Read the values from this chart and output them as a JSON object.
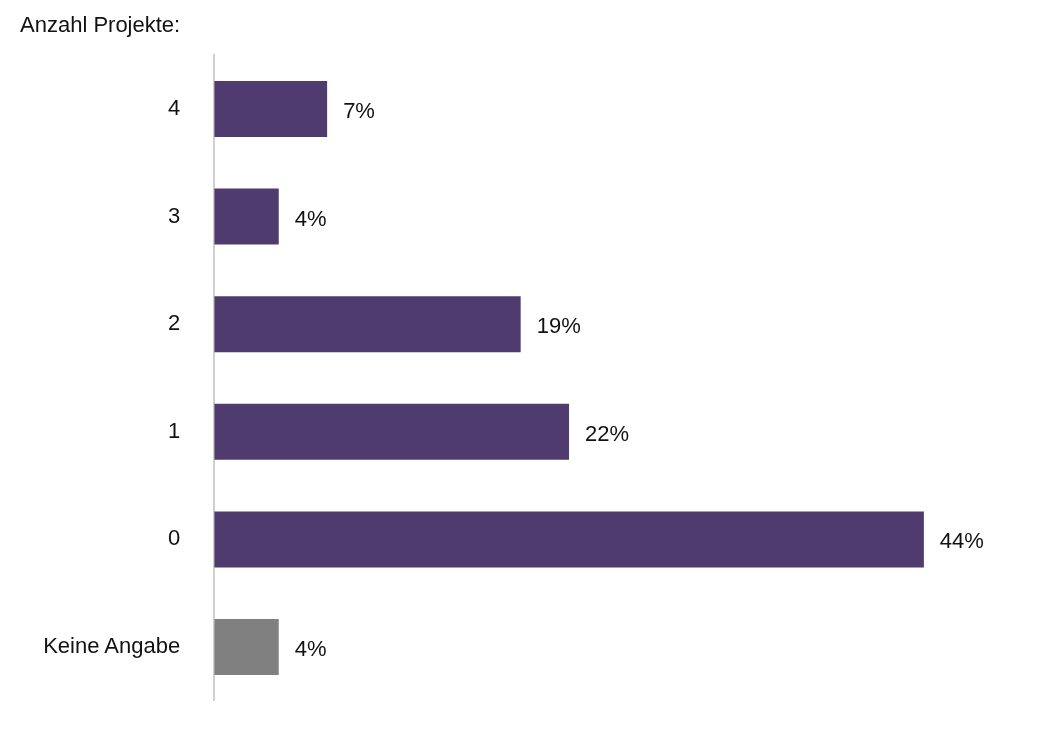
{
  "chart_data": {
    "type": "bar",
    "orientation": "horizontal",
    "ylabel": "Anzahl Projekte:",
    "categories": [
      "4",
      "3",
      "2",
      "1",
      "0",
      "Keine Angabe"
    ],
    "values": [
      7,
      4,
      19,
      22,
      44,
      4
    ],
    "colors": [
      "#4f3b6e",
      "#4f3b6e",
      "#4f3b6e",
      "#4f3b6e",
      "#4f3b6e",
      "#808080"
    ],
    "value_labels": [
      "7%",
      "4%",
      "19%",
      "22%",
      "44%",
      "4%"
    ]
  }
}
